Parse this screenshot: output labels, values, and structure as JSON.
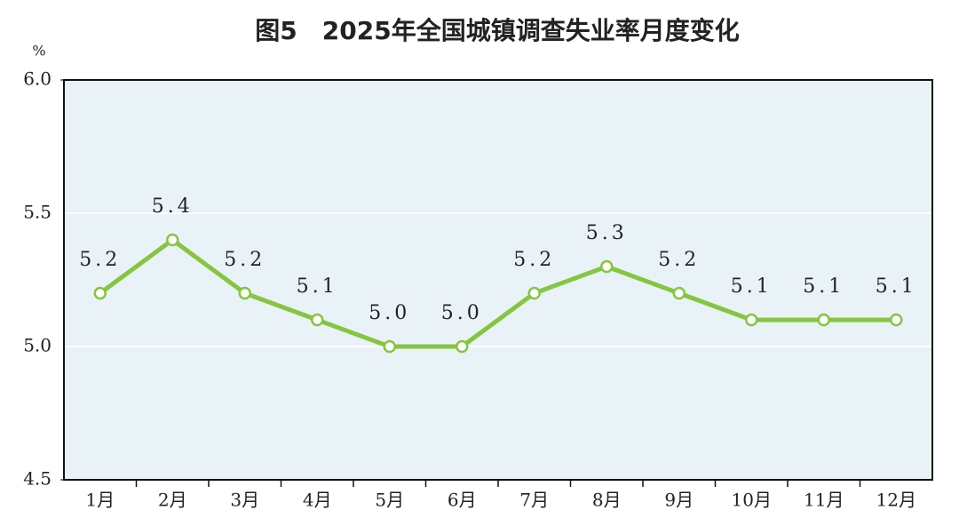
{
  "chart_data": {
    "type": "line",
    "title": "图5　2025年全国城镇调查失业率月度变化",
    "y_unit": "%",
    "categories": [
      "1月",
      "2月",
      "3月",
      "4月",
      "5月",
      "6月",
      "7月",
      "8月",
      "9月",
      "10月",
      "11月",
      "12月"
    ],
    "series": [
      {
        "color": "#86c540",
        "values": [
          5.2,
          5.4,
          5.2,
          5.1,
          5.0,
          5.0,
          5.2,
          5.3,
          5.2,
          5.1,
          5.1,
          5.1
        ],
        "value_labels": [
          "5.2",
          "5.4",
          "5.2",
          "5.1",
          "5.0",
          "5.0",
          "5.2",
          "5.3",
          "5.2",
          "5.1",
          "5.1",
          "5.1"
        ]
      }
    ],
    "ylim": [
      4.5,
      6.0
    ],
    "yticks": [
      {
        "value": 4.5,
        "label": "4.5"
      },
      {
        "value": 5.0,
        "label": "5.0"
      },
      {
        "value": 5.5,
        "label": "5.5"
      },
      {
        "value": 6.0,
        "label": "6.0"
      }
    ],
    "grid": true
  }
}
